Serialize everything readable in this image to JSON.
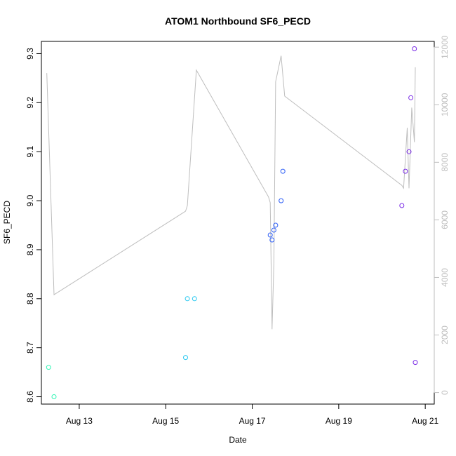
{
  "chart_data": {
    "type": "scatter",
    "title": "ATOM1 Northbound SF6_PECD",
    "xlabel": "Date",
    "ylabel": "SF6_PECD",
    "x_ticks": [
      {
        "date": "2016-08-13",
        "label": "Aug 13"
      },
      {
        "date": "2016-08-15",
        "label": "Aug 15"
      },
      {
        "date": "2016-08-17",
        "label": "Aug 17"
      },
      {
        "date": "2016-08-19",
        "label": "Aug 19"
      },
      {
        "date": "2016-08-21",
        "label": "Aug 21"
      }
    ],
    "xlim": [
      "2016-08-12T03:00",
      "2016-08-21T05:00"
    ],
    "ylim": [
      8.585,
      9.325
    ],
    "y_ticks": [
      8.6,
      8.7,
      8.8,
      8.9,
      9.0,
      9.1,
      9.2,
      9.3
    ],
    "y_tick_labels": [
      "8.6",
      "8.7",
      "8.8",
      "8.9",
      "9.0",
      "9.1",
      "9.2",
      "9.3"
    ],
    "y2_ticks": [
      0,
      2000,
      4000,
      6000,
      8000,
      10000,
      12000
    ],
    "y2_tick_labels": [
      "0",
      "2000",
      "4000",
      "6000",
      "8000",
      "10000",
      "12000"
    ],
    "y2lim": [
      -400,
      12200
    ],
    "points": [
      {
        "date": "2016-08-12T07:00",
        "value": 8.66,
        "color": "#33f5b5"
      },
      {
        "date": "2016-08-12T10:00",
        "value": 8.6,
        "color": "#33f5b5"
      },
      {
        "date": "2016-08-15T11:00",
        "value": 8.68,
        "color": "#28c8f0"
      },
      {
        "date": "2016-08-15T12:00",
        "value": 8.8,
        "color": "#28c8f0"
      },
      {
        "date": "2016-08-15T16:00",
        "value": 8.8,
        "color": "#28c8f0"
      },
      {
        "date": "2016-08-17T10:00",
        "value": 8.93,
        "color": "#2b5cf6"
      },
      {
        "date": "2016-08-17T11:00",
        "value": 8.92,
        "color": "#2b5cf6"
      },
      {
        "date": "2016-08-17T12:00",
        "value": 8.94,
        "color": "#2b5cf6"
      },
      {
        "date": "2016-08-17T13:00",
        "value": 8.95,
        "color": "#2b5cf6"
      },
      {
        "date": "2016-08-17T16:00",
        "value": 9.0,
        "color": "#2b5cf6"
      },
      {
        "date": "2016-08-17T17:00",
        "value": 9.06,
        "color": "#2b5cf6"
      },
      {
        "date": "2016-08-20T11:00",
        "value": 8.99,
        "color": "#7a2be6"
      },
      {
        "date": "2016-08-20T13:00",
        "value": 9.06,
        "color": "#7a2be6"
      },
      {
        "date": "2016-08-20T15:00",
        "value": 9.1,
        "color": "#7a2be6"
      },
      {
        "date": "2016-08-20T16:00",
        "value": 9.21,
        "color": "#7a2be6"
      },
      {
        "date": "2016-08-20T18:00",
        "value": 9.31,
        "color": "#7a2be6"
      },
      {
        "date": "2016-08-20T18:30",
        "value": 8.67,
        "color": "#7a2be6"
      }
    ],
    "line_color": "#bebebe",
    "line_series": [
      {
        "date": "2016-08-12T06:00",
        "value": 11100
      },
      {
        "date": "2016-08-12T10:00",
        "value": 3400
      },
      {
        "date": "2016-08-15T11:00",
        "value": 6300
      },
      {
        "date": "2016-08-15T12:00",
        "value": 6500
      },
      {
        "date": "2016-08-15T17:00",
        "value": 11200
      },
      {
        "date": "2016-08-17T09:00",
        "value": 6800
      },
      {
        "date": "2016-08-17T10:00",
        "value": 6600
      },
      {
        "date": "2016-08-17T11:00",
        "value": 2200
      },
      {
        "date": "2016-08-17T12:00",
        "value": 4500
      },
      {
        "date": "2016-08-17T13:00",
        "value": 10800
      },
      {
        "date": "2016-08-17T16:00",
        "value": 11700
      },
      {
        "date": "2016-08-17T18:00",
        "value": 10300
      },
      {
        "date": "2016-08-20T11:00",
        "value": 7200
      },
      {
        "date": "2016-08-20T12:00",
        "value": 7100
      },
      {
        "date": "2016-08-20T14:00",
        "value": 9200
      },
      {
        "date": "2016-08-20T15:00",
        "value": 7100
      },
      {
        "date": "2016-08-20T16:30",
        "value": 9900
      },
      {
        "date": "2016-08-20T18:00",
        "value": 8700
      },
      {
        "date": "2016-08-20T18:30",
        "value": 11300
      }
    ]
  }
}
